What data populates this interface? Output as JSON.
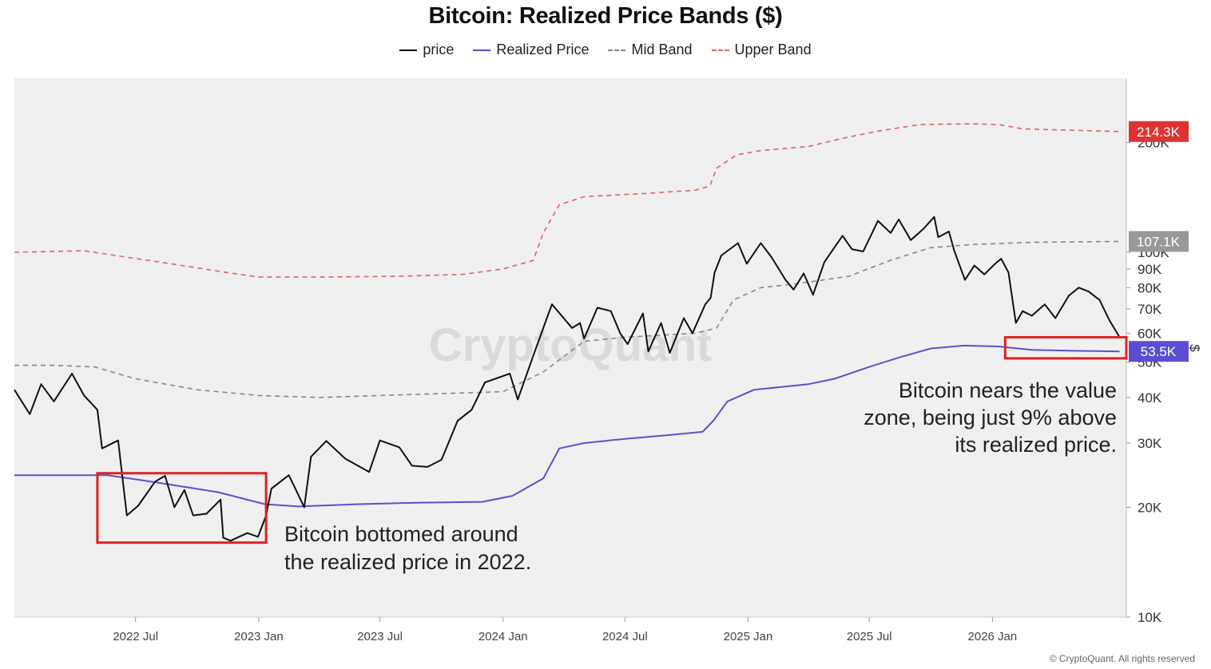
{
  "chart_data": {
    "type": "line",
    "title": "Bitcoin: Realized Price Bands ($)",
    "y_scale": "log",
    "ylim": [
      10000,
      300000
    ],
    "y_ticks": [
      {
        "value": 10000,
        "label": "10K"
      },
      {
        "value": 20000,
        "label": "20K"
      },
      {
        "value": 30000,
        "label": "30K"
      },
      {
        "value": 40000,
        "label": "40K"
      },
      {
        "value": 50000,
        "label": "50K"
      },
      {
        "value": 60000,
        "label": "60K"
      },
      {
        "value": 70000,
        "label": "70K"
      },
      {
        "value": 80000,
        "label": "80K"
      },
      {
        "value": 90000,
        "label": "90K"
      },
      {
        "value": 100000,
        "label": "100K"
      },
      {
        "value": 200000,
        "label": "200K"
      }
    ],
    "y_unit_label": "$",
    "xlim": [
      "2022-01-01",
      "2026-07-20"
    ],
    "x_ticks": [
      {
        "date": "2022-07-01",
        "label": "2022 Jul"
      },
      {
        "date": "2023-01-01",
        "label": "2023 Jan"
      },
      {
        "date": "2023-07-01",
        "label": "2023 Jul"
      },
      {
        "date": "2024-01-01",
        "label": "2024 Jan"
      },
      {
        "date": "2024-07-01",
        "label": "2024 Jul"
      },
      {
        "date": "2025-01-01",
        "label": "2025 Jan"
      },
      {
        "date": "2025-07-01",
        "label": "2025 Jul"
      },
      {
        "date": "2026-01-01",
        "label": "2026 Jan"
      }
    ],
    "legend_position": "top-center",
    "grid": false,
    "series": [
      {
        "name": "price",
        "color": "#111111",
        "dash": "solid",
        "points": [
          [
            "2022-01-01",
            42000
          ],
          [
            "2022-01-24",
            36000
          ],
          [
            "2022-02-10",
            43500
          ],
          [
            "2022-03-01",
            39000
          ],
          [
            "2022-03-28",
            46500
          ],
          [
            "2022-04-15",
            40500
          ],
          [
            "2022-05-05",
            37000
          ],
          [
            "2022-05-12",
            29000
          ],
          [
            "2022-06-05",
            30500
          ],
          [
            "2022-06-14",
            22000
          ],
          [
            "2022-06-18",
            19000
          ],
          [
            "2022-07-05",
            20200
          ],
          [
            "2022-07-30",
            23500
          ],
          [
            "2022-08-14",
            24400
          ],
          [
            "2022-08-28",
            20000
          ],
          [
            "2022-09-12",
            22300
          ],
          [
            "2022-09-25",
            19000
          ],
          [
            "2022-10-15",
            19200
          ],
          [
            "2022-11-05",
            21000
          ],
          [
            "2022-11-09",
            16500
          ],
          [
            "2022-11-20",
            16200
          ],
          [
            "2022-12-15",
            17000
          ],
          [
            "2022-12-31",
            16600
          ],
          [
            "2023-01-12",
            19000
          ],
          [
            "2023-01-20",
            22500
          ],
          [
            "2023-02-15",
            24500
          ],
          [
            "2023-03-10",
            20000
          ],
          [
            "2023-03-20",
            27500
          ],
          [
            "2023-04-12",
            30400
          ],
          [
            "2023-05-10",
            27200
          ],
          [
            "2023-06-15",
            25000
          ],
          [
            "2023-07-01",
            30500
          ],
          [
            "2023-07-30",
            29200
          ],
          [
            "2023-08-18",
            26000
          ],
          [
            "2023-09-10",
            25800
          ],
          [
            "2023-10-01",
            27000
          ],
          [
            "2023-10-25",
            34500
          ],
          [
            "2023-11-15",
            37000
          ],
          [
            "2023-12-05",
            44000
          ],
          [
            "2024-01-11",
            46500
          ],
          [
            "2024-01-23",
            39500
          ],
          [
            "2024-02-15",
            52000
          ],
          [
            "2024-03-01",
            62000
          ],
          [
            "2024-03-14",
            72000
          ],
          [
            "2024-04-13",
            62000
          ],
          [
            "2024-04-25",
            64000
          ],
          [
            "2024-05-01",
            58000
          ],
          [
            "2024-05-21",
            70500
          ],
          [
            "2024-06-10",
            69000
          ],
          [
            "2024-06-24",
            60000
          ],
          [
            "2024-07-05",
            56000
          ],
          [
            "2024-07-28",
            68000
          ],
          [
            "2024-08-05",
            53500
          ],
          [
            "2024-08-24",
            64000
          ],
          [
            "2024-09-06",
            53000
          ],
          [
            "2024-09-27",
            66000
          ],
          [
            "2024-10-10",
            60000
          ],
          [
            "2024-10-29",
            72000
          ],
          [
            "2024-11-06",
            75000
          ],
          [
            "2024-11-12",
            88000
          ],
          [
            "2024-11-22",
            98000
          ],
          [
            "2024-12-17",
            106000
          ],
          [
            "2024-12-30",
            93000
          ],
          [
            "2025-01-20",
            106000
          ],
          [
            "2025-02-05",
            97000
          ],
          [
            "2025-02-26",
            84000
          ],
          [
            "2025-03-10",
            79000
          ],
          [
            "2025-03-25",
            87500
          ],
          [
            "2025-04-08",
            76500
          ],
          [
            "2025-04-25",
            94000
          ],
          [
            "2025-05-22",
            111000
          ],
          [
            "2025-06-05",
            102000
          ],
          [
            "2025-06-22",
            100500
          ],
          [
            "2025-07-14",
            122000
          ],
          [
            "2025-08-02",
            113000
          ],
          [
            "2025-08-14",
            123000
          ],
          [
            "2025-09-01",
            108000
          ],
          [
            "2025-09-20",
            116000
          ],
          [
            "2025-10-06",
            125000
          ],
          [
            "2025-10-12",
            110000
          ],
          [
            "2025-10-28",
            114000
          ],
          [
            "2025-11-05",
            101000
          ],
          [
            "2025-11-21",
            84000
          ],
          [
            "2025-12-05",
            92000
          ],
          [
            "2025-12-20",
            87000
          ],
          [
            "2026-01-05",
            93000
          ],
          [
            "2026-01-14",
            96000
          ],
          [
            "2026-01-25",
            88000
          ],
          [
            "2026-02-05",
            64000
          ],
          [
            "2026-02-15",
            69000
          ],
          [
            "2026-03-01",
            67000
          ],
          [
            "2026-03-20",
            72000
          ],
          [
            "2026-04-05",
            66000
          ],
          [
            "2026-04-25",
            76000
          ],
          [
            "2026-05-10",
            80000
          ],
          [
            "2026-05-25",
            78000
          ],
          [
            "2026-06-10",
            74000
          ],
          [
            "2026-06-25",
            65000
          ],
          [
            "2026-07-10",
            58500
          ]
        ]
      },
      {
        "name": "Realized Price",
        "color": "#5b4fd1",
        "dash": "solid",
        "points": [
          [
            "2022-01-01",
            24500
          ],
          [
            "2022-03-01",
            24500
          ],
          [
            "2022-05-20",
            24500
          ],
          [
            "2022-08-01",
            23400
          ],
          [
            "2022-11-01",
            22000
          ],
          [
            "2023-01-10",
            20400
          ],
          [
            "2023-03-01",
            20100
          ],
          [
            "2023-06-01",
            20400
          ],
          [
            "2023-09-01",
            20600
          ],
          [
            "2023-12-01",
            20700
          ],
          [
            "2024-01-15",
            21500
          ],
          [
            "2024-03-01",
            24000
          ],
          [
            "2024-03-25",
            29000
          ],
          [
            "2024-05-01",
            30000
          ],
          [
            "2024-07-01",
            30800
          ],
          [
            "2024-09-01",
            31500
          ],
          [
            "2024-10-25",
            32200
          ],
          [
            "2024-11-10",
            34500
          ],
          [
            "2024-12-01",
            39000
          ],
          [
            "2025-01-10",
            42000
          ],
          [
            "2025-04-01",
            43500
          ],
          [
            "2025-05-10",
            45000
          ],
          [
            "2025-07-01",
            48500
          ],
          [
            "2025-08-15",
            51500
          ],
          [
            "2025-10-01",
            54500
          ],
          [
            "2025-11-20",
            55500
          ],
          [
            "2026-01-10",
            55200
          ],
          [
            "2026-03-01",
            54000
          ],
          [
            "2026-05-01",
            53700
          ],
          [
            "2026-07-10",
            53500
          ]
        ]
      },
      {
        "name": "Mid Band",
        "color": "#888888",
        "dash": "dashed",
        "points": [
          [
            "2022-01-01",
            49000
          ],
          [
            "2022-03-01",
            49000
          ],
          [
            "2022-05-01",
            48500
          ],
          [
            "2022-07-01",
            45000
          ],
          [
            "2022-10-01",
            42000
          ],
          [
            "2023-01-01",
            40500
          ],
          [
            "2023-04-01",
            40000
          ],
          [
            "2023-07-01",
            40500
          ],
          [
            "2023-10-01",
            41000
          ],
          [
            "2024-01-01",
            41500
          ],
          [
            "2024-03-01",
            47000
          ],
          [
            "2024-05-01",
            57000
          ],
          [
            "2024-07-01",
            58500
          ],
          [
            "2024-10-15",
            60000
          ],
          [
            "2024-11-15",
            62000
          ],
          [
            "2024-12-10",
            74000
          ],
          [
            "2025-01-20",
            80000
          ],
          [
            "2025-03-15",
            82000
          ],
          [
            "2025-06-01",
            86000
          ],
          [
            "2025-08-01",
            95000
          ],
          [
            "2025-10-01",
            103000
          ],
          [
            "2025-12-01",
            105000
          ],
          [
            "2026-03-01",
            106500
          ],
          [
            "2026-07-10",
            107100
          ]
        ]
      },
      {
        "name": "Upper Band",
        "color": "#e06666",
        "dash": "dashed",
        "points": [
          [
            "2022-01-01",
            100000
          ],
          [
            "2022-04-15",
            101000
          ],
          [
            "2022-06-01",
            98000
          ],
          [
            "2022-08-15",
            93500
          ],
          [
            "2022-11-15",
            88000
          ],
          [
            "2023-01-01",
            85500
          ],
          [
            "2023-04-01",
            85500
          ],
          [
            "2023-08-01",
            86000
          ],
          [
            "2023-11-01",
            87000
          ],
          [
            "2024-01-01",
            90000
          ],
          [
            "2024-02-15",
            95000
          ],
          [
            "2024-03-01",
            113000
          ],
          [
            "2024-03-25",
            135000
          ],
          [
            "2024-05-01",
            142000
          ],
          [
            "2024-08-01",
            145000
          ],
          [
            "2024-10-15",
            148000
          ],
          [
            "2024-11-05",
            152000
          ],
          [
            "2024-11-15",
            170000
          ],
          [
            "2024-12-15",
            185000
          ],
          [
            "2025-01-20",
            190000
          ],
          [
            "2025-04-01",
            195000
          ],
          [
            "2025-05-20",
            205000
          ],
          [
            "2025-07-15",
            215000
          ],
          [
            "2025-09-15",
            224000
          ],
          [
            "2025-12-01",
            225000
          ],
          [
            "2026-01-10",
            224000
          ],
          [
            "2026-02-15",
            218000
          ],
          [
            "2026-07-10",
            214300
          ]
        ]
      }
    ],
    "value_labels": [
      {
        "label": "214.3K",
        "value": 214300,
        "color": "#dd3333"
      },
      {
        "label": "107.1K",
        "value": 107100,
        "color": "#999999"
      },
      {
        "label": "53.5K",
        "value": 53500,
        "color": "#5b4fd1"
      }
    ],
    "highlight_boxes": [
      {
        "x0": "2022-05-05",
        "x1": "2023-01-12",
        "y0": 16000,
        "y1": 24800
      },
      {
        "x0": "2026-01-20",
        "x1": "2026-07-20",
        "y0": 51200,
        "y1": 58500
      }
    ],
    "annotations": [
      {
        "lines": [
          "Bitcoin bottomed around",
          "the realized price in 2022."
        ]
      },
      {
        "lines": [
          "Bitcoin nears the value",
          "zone, being just 9% above",
          "its realized price."
        ]
      }
    ],
    "watermark": "CryptoQuant"
  },
  "legend": [
    {
      "label": "price",
      "color": "#111111",
      "dashed": false
    },
    {
      "label": "Realized Price",
      "color": "#5b4fd1",
      "dashed": false
    },
    {
      "label": "Mid Band",
      "color": "#888888",
      "dashed": true
    },
    {
      "label": "Upper Band",
      "color": "#e06666",
      "dashed": true
    }
  ],
  "copyright": "© CryptoQuant. All rights reserved"
}
